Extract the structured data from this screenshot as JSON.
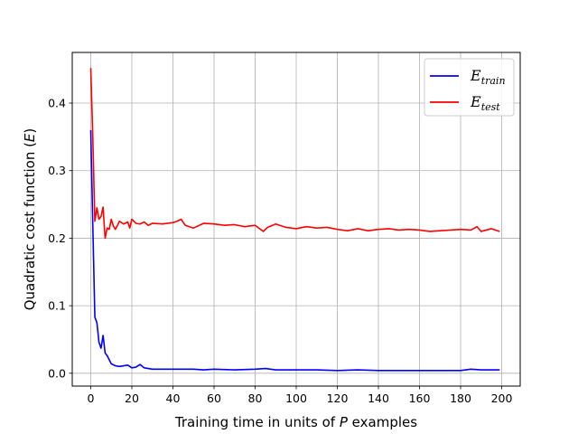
{
  "chart_data": {
    "type": "line",
    "title": "",
    "xlabel": {
      "text": "Training time in units of ",
      "var": "P",
      "suffix": " examples"
    },
    "ylabel": {
      "text": "Quadratic cost function (",
      "var": "E",
      "suffix": ")"
    },
    "xlim": [
      -9,
      209
    ],
    "ylim": [
      -0.019,
      0.475
    ],
    "xticks": [
      0,
      20,
      40,
      60,
      80,
      100,
      120,
      140,
      160,
      180,
      200
    ],
    "xtick_labels": [
      "0",
      "20",
      "40",
      "60",
      "80",
      "100",
      "120",
      "140",
      "160",
      "180",
      "200"
    ],
    "yticks": [
      0.0,
      0.1,
      0.2,
      0.3,
      0.4
    ],
    "ytick_labels": [
      "0.0",
      "0.1",
      "0.2",
      "0.3",
      "0.4"
    ],
    "grid": true,
    "legend_position": "top-right",
    "series": [
      {
        "name": "E_train",
        "label_main": "E",
        "label_sub": "train",
        "color": "#0000ff",
        "x": [
          0,
          1,
          2,
          3,
          4,
          5,
          6,
          7,
          8,
          9,
          10,
          12,
          14,
          16,
          18,
          20,
          22,
          24,
          26,
          28,
          30,
          35,
          40,
          45,
          50,
          55,
          60,
          70,
          80,
          85,
          90,
          100,
          110,
          120,
          130,
          140,
          150,
          160,
          170,
          180,
          185,
          190,
          195,
          199
        ],
        "y": [
          0.36,
          0.22,
          0.083,
          0.075,
          0.046,
          0.037,
          0.056,
          0.03,
          0.026,
          0.02,
          0.014,
          0.011,
          0.01,
          0.011,
          0.012,
          0.008,
          0.009,
          0.013,
          0.008,
          0.007,
          0.006,
          0.006,
          0.006,
          0.006,
          0.006,
          0.005,
          0.006,
          0.005,
          0.006,
          0.007,
          0.005,
          0.005,
          0.005,
          0.004,
          0.005,
          0.004,
          0.004,
          0.004,
          0.004,
          0.004,
          0.006,
          0.005,
          0.005,
          0.005
        ]
      },
      {
        "name": "E_test",
        "label_main": "E",
        "label_sub": "test",
        "color": "#ff0000",
        "x": [
          0,
          1,
          2,
          3,
          4,
          5,
          6,
          7,
          8,
          9,
          10,
          11,
          12,
          14,
          16,
          18,
          19,
          20,
          22,
          24,
          26,
          28,
          30,
          35,
          40,
          42,
          44,
          46,
          50,
          55,
          60,
          65,
          70,
          75,
          80,
          84,
          86,
          90,
          95,
          100,
          105,
          110,
          115,
          120,
          125,
          130,
          135,
          140,
          145,
          150,
          155,
          160,
          165,
          170,
          175,
          180,
          185,
          188,
          190,
          195,
          199
        ],
        "y": [
          0.452,
          0.35,
          0.225,
          0.245,
          0.228,
          0.232,
          0.246,
          0.2,
          0.215,
          0.213,
          0.228,
          0.218,
          0.213,
          0.225,
          0.221,
          0.224,
          0.215,
          0.228,
          0.222,
          0.221,
          0.224,
          0.219,
          0.222,
          0.221,
          0.223,
          0.225,
          0.228,
          0.219,
          0.215,
          0.222,
          0.221,
          0.219,
          0.22,
          0.217,
          0.219,
          0.21,
          0.216,
          0.221,
          0.216,
          0.214,
          0.217,
          0.215,
          0.216,
          0.213,
          0.211,
          0.214,
          0.211,
          0.213,
          0.214,
          0.212,
          0.213,
          0.212,
          0.21,
          0.211,
          0.212,
          0.213,
          0.212,
          0.217,
          0.21,
          0.214,
          0.21
        ]
      }
    ]
  }
}
